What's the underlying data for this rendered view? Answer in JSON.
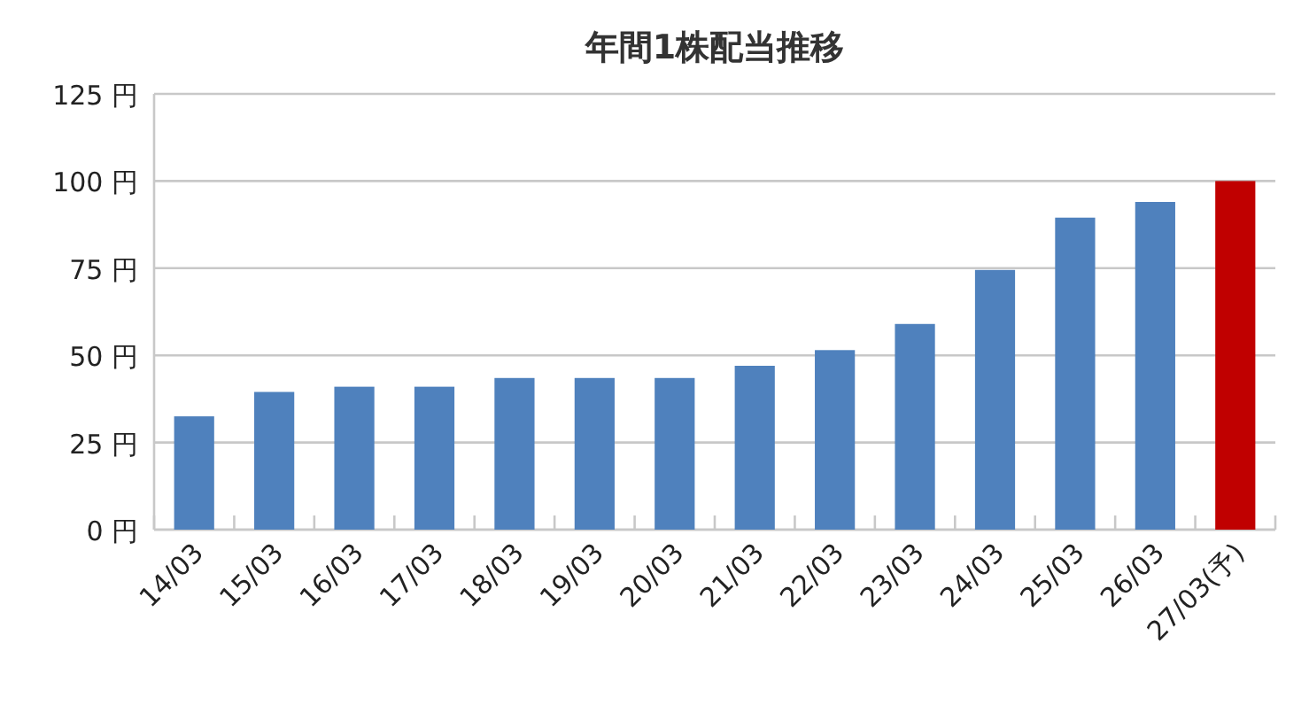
{
  "chart_data": {
    "type": "bar",
    "title": "年間1株配当推移",
    "categories": [
      "14/03",
      "15/03",
      "16/03",
      "17/03",
      "18/03",
      "19/03",
      "20/03",
      "21/03",
      "22/03",
      "23/03",
      "24/03",
      "25/03",
      "26/03",
      "27/03(予)"
    ],
    "values": [
      32.5,
      39.5,
      41,
      41,
      43.5,
      43.5,
      43.5,
      47,
      51.5,
      59,
      74.5,
      89.5,
      94,
      100
    ],
    "colors": [
      "#4f81bd",
      "#4f81bd",
      "#4f81bd",
      "#4f81bd",
      "#4f81bd",
      "#4f81bd",
      "#4f81bd",
      "#4f81bd",
      "#4f81bd",
      "#4f81bd",
      "#4f81bd",
      "#4f81bd",
      "#4f81bd",
      "#c00000"
    ],
    "ylim": [
      0,
      125
    ],
    "yticks": [
      {
        "value": 0,
        "label": "0 円"
      },
      {
        "value": 25,
        "label": "25 円"
      },
      {
        "value": 50,
        "label": "50 円"
      },
      {
        "value": 75,
        "label": "75 円"
      },
      {
        "value": 100,
        "label": "100 円"
      },
      {
        "value": 125,
        "label": "125 円"
      }
    ],
    "grid": "y"
  }
}
